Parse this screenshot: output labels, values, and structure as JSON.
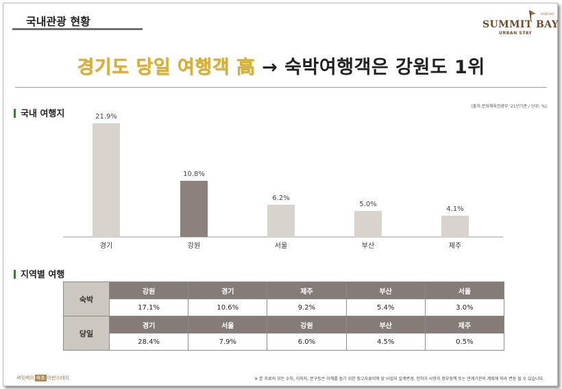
{
  "header": {
    "title": "국내관광 현황",
    "logo": {
      "brand": "SUMMIT BAY",
      "sub": "URBAN STAY",
      "tag": "SOKCHO"
    }
  },
  "headline": {
    "highlight": "경기도 당일 여행객 高",
    "arrow": "→",
    "rest": "숙박여행객은 강원도 1위"
  },
  "source_note": "(출처:문화체육관광부 '21년기준 / 단위: %)",
  "sections": {
    "chart": "국내 여행지",
    "table": "지역별 여행"
  },
  "chart_data": {
    "type": "bar",
    "categories": [
      "경기",
      "강원",
      "서울",
      "부산",
      "제주"
    ],
    "values": [
      21.9,
      10.8,
      6.2,
      5.0,
      4.1
    ],
    "value_labels": [
      "21.9%",
      "10.8%",
      "6.2%",
      "5.0%",
      "4.1%"
    ],
    "title": "국내 여행지",
    "ylim": [
      0,
      22
    ],
    "grid": false,
    "legend": "none",
    "colors": {
      "default": "#d8d4cd",
      "highlight": "#8c817c",
      "highlight_index": 1
    }
  },
  "region_table": {
    "rows": [
      {
        "label": "숙박",
        "regions": [
          "강원",
          "경기",
          "제주",
          "부산",
          "서울"
        ],
        "values": [
          "17.1%",
          "10.6%",
          "9.2%",
          "5.4%",
          "3.0%"
        ]
      },
      {
        "label": "당일",
        "regions": [
          "경기",
          "서울",
          "강원",
          "부산",
          "제주"
        ],
        "values": [
          "28.4%",
          "7.9%",
          "6.0%",
          "4.5%",
          "0.5%"
        ]
      }
    ]
  },
  "footer": {
    "brand_left": "써밋베이",
    "brand_chip": "속초",
    "brand_right": "어반스테이",
    "note": "※ 본 자료의 모든 수치, 이미지, 문구등은 이해를 돕기 위한 참고자료이며 당 사업지 설계변경, 인허가 사항과 정부정책 또는 관계기관의 계획에 따라 변동 될 수 있습니다."
  }
}
